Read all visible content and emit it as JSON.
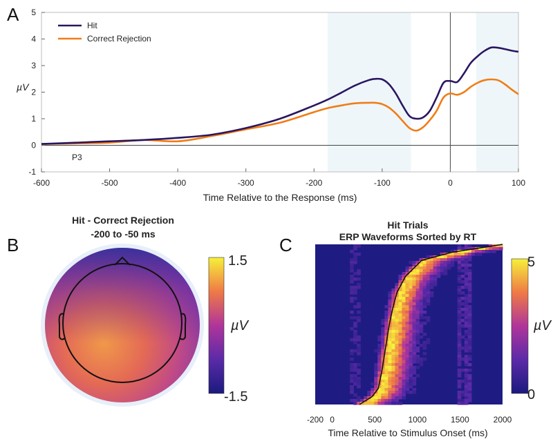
{
  "chart_data": [
    {
      "type": "line",
      "panel": "A",
      "xlabel": "Time Relative to the Response (ms)",
      "ylabel": "µV",
      "xlim": [
        -600,
        100
      ],
      "ylim": [
        -1,
        5
      ],
      "xticks": [
        -600,
        -500,
        -400,
        -300,
        -200,
        -100,
        0,
        100
      ],
      "yticks": [
        -1,
        0,
        1,
        2,
        3,
        4,
        5
      ],
      "annotation": "P3",
      "shaded_windows": [
        [
          -180,
          -58
        ],
        [
          38,
          100
        ]
      ],
      "series": [
        {
          "name": "Hit",
          "color": "#2a1660",
          "x": [
            -600,
            -550,
            -500,
            -450,
            -400,
            -350,
            -300,
            -250,
            -200,
            -180,
            -160,
            -140,
            -120,
            -110,
            -100,
            -90,
            -80,
            -70,
            -60,
            -50,
            -40,
            -30,
            -20,
            -10,
            0,
            10,
            20,
            30,
            40,
            50,
            60,
            70,
            80,
            90,
            100
          ],
          "y": [
            0.05,
            0.1,
            0.15,
            0.2,
            0.28,
            0.4,
            0.65,
            1.0,
            1.5,
            1.72,
            1.98,
            2.25,
            2.45,
            2.5,
            2.48,
            2.3,
            1.95,
            1.5,
            1.1,
            1.0,
            1.05,
            1.3,
            1.8,
            2.35,
            2.42,
            2.38,
            2.7,
            3.1,
            3.35,
            3.55,
            3.68,
            3.67,
            3.62,
            3.56,
            3.52
          ]
        },
        {
          "name": "Correct Rejection",
          "color": "#f07c14",
          "x": [
            -600,
            -550,
            -500,
            -450,
            -400,
            -350,
            -300,
            -250,
            -200,
            -180,
            -160,
            -140,
            -120,
            -110,
            -100,
            -90,
            -80,
            -70,
            -60,
            -50,
            -40,
            -30,
            -20,
            -10,
            0,
            10,
            20,
            30,
            40,
            50,
            60,
            70,
            80,
            90,
            100
          ],
          "y": [
            0.05,
            0.07,
            0.1,
            0.2,
            0.15,
            0.35,
            0.6,
            0.85,
            1.25,
            1.4,
            1.5,
            1.58,
            1.6,
            1.6,
            1.55,
            1.42,
            1.2,
            0.92,
            0.65,
            0.55,
            0.68,
            0.95,
            1.3,
            1.8,
            1.95,
            1.9,
            2.0,
            2.2,
            2.35,
            2.45,
            2.48,
            2.45,
            2.3,
            2.1,
            1.92
          ]
        }
      ]
    },
    {
      "type": "heatmap",
      "panel": "B",
      "title": "Hit - Correct Rejection",
      "subtitle": "-200 to -50 ms",
      "colorbar": {
        "label": "µV",
        "min": -1.5,
        "max": 1.5,
        "min_label": "-1.5",
        "max_label": "1.5"
      }
    },
    {
      "type": "heatmap",
      "panel": "C",
      "title": "Hit Trials",
      "subtitle": "ERP Waveforms Sorted by RT",
      "xlabel": "Time Relative to Stimulus Onset (ms)",
      "xlim": [
        -200,
        2000
      ],
      "xticks": [
        -200,
        0,
        500,
        1000,
        1500,
        2000
      ],
      "rt_curve": {
        "frac": [
          0,
          0.05,
          0.1,
          0.2,
          0.3,
          0.4,
          0.5,
          0.6,
          0.7,
          0.8,
          0.9,
          0.95,
          1.0
        ],
        "ms": [
          320,
          470,
          540,
          580,
          610,
          640,
          670,
          710,
          760,
          860,
          1050,
          1400,
          2000
        ]
      },
      "colorbar": {
        "label": "µV",
        "min": 0,
        "max": 5,
        "min_label": "0",
        "max_label": "5"
      }
    }
  ],
  "panels": {
    "a": "A",
    "b": "B",
    "c": "C"
  }
}
